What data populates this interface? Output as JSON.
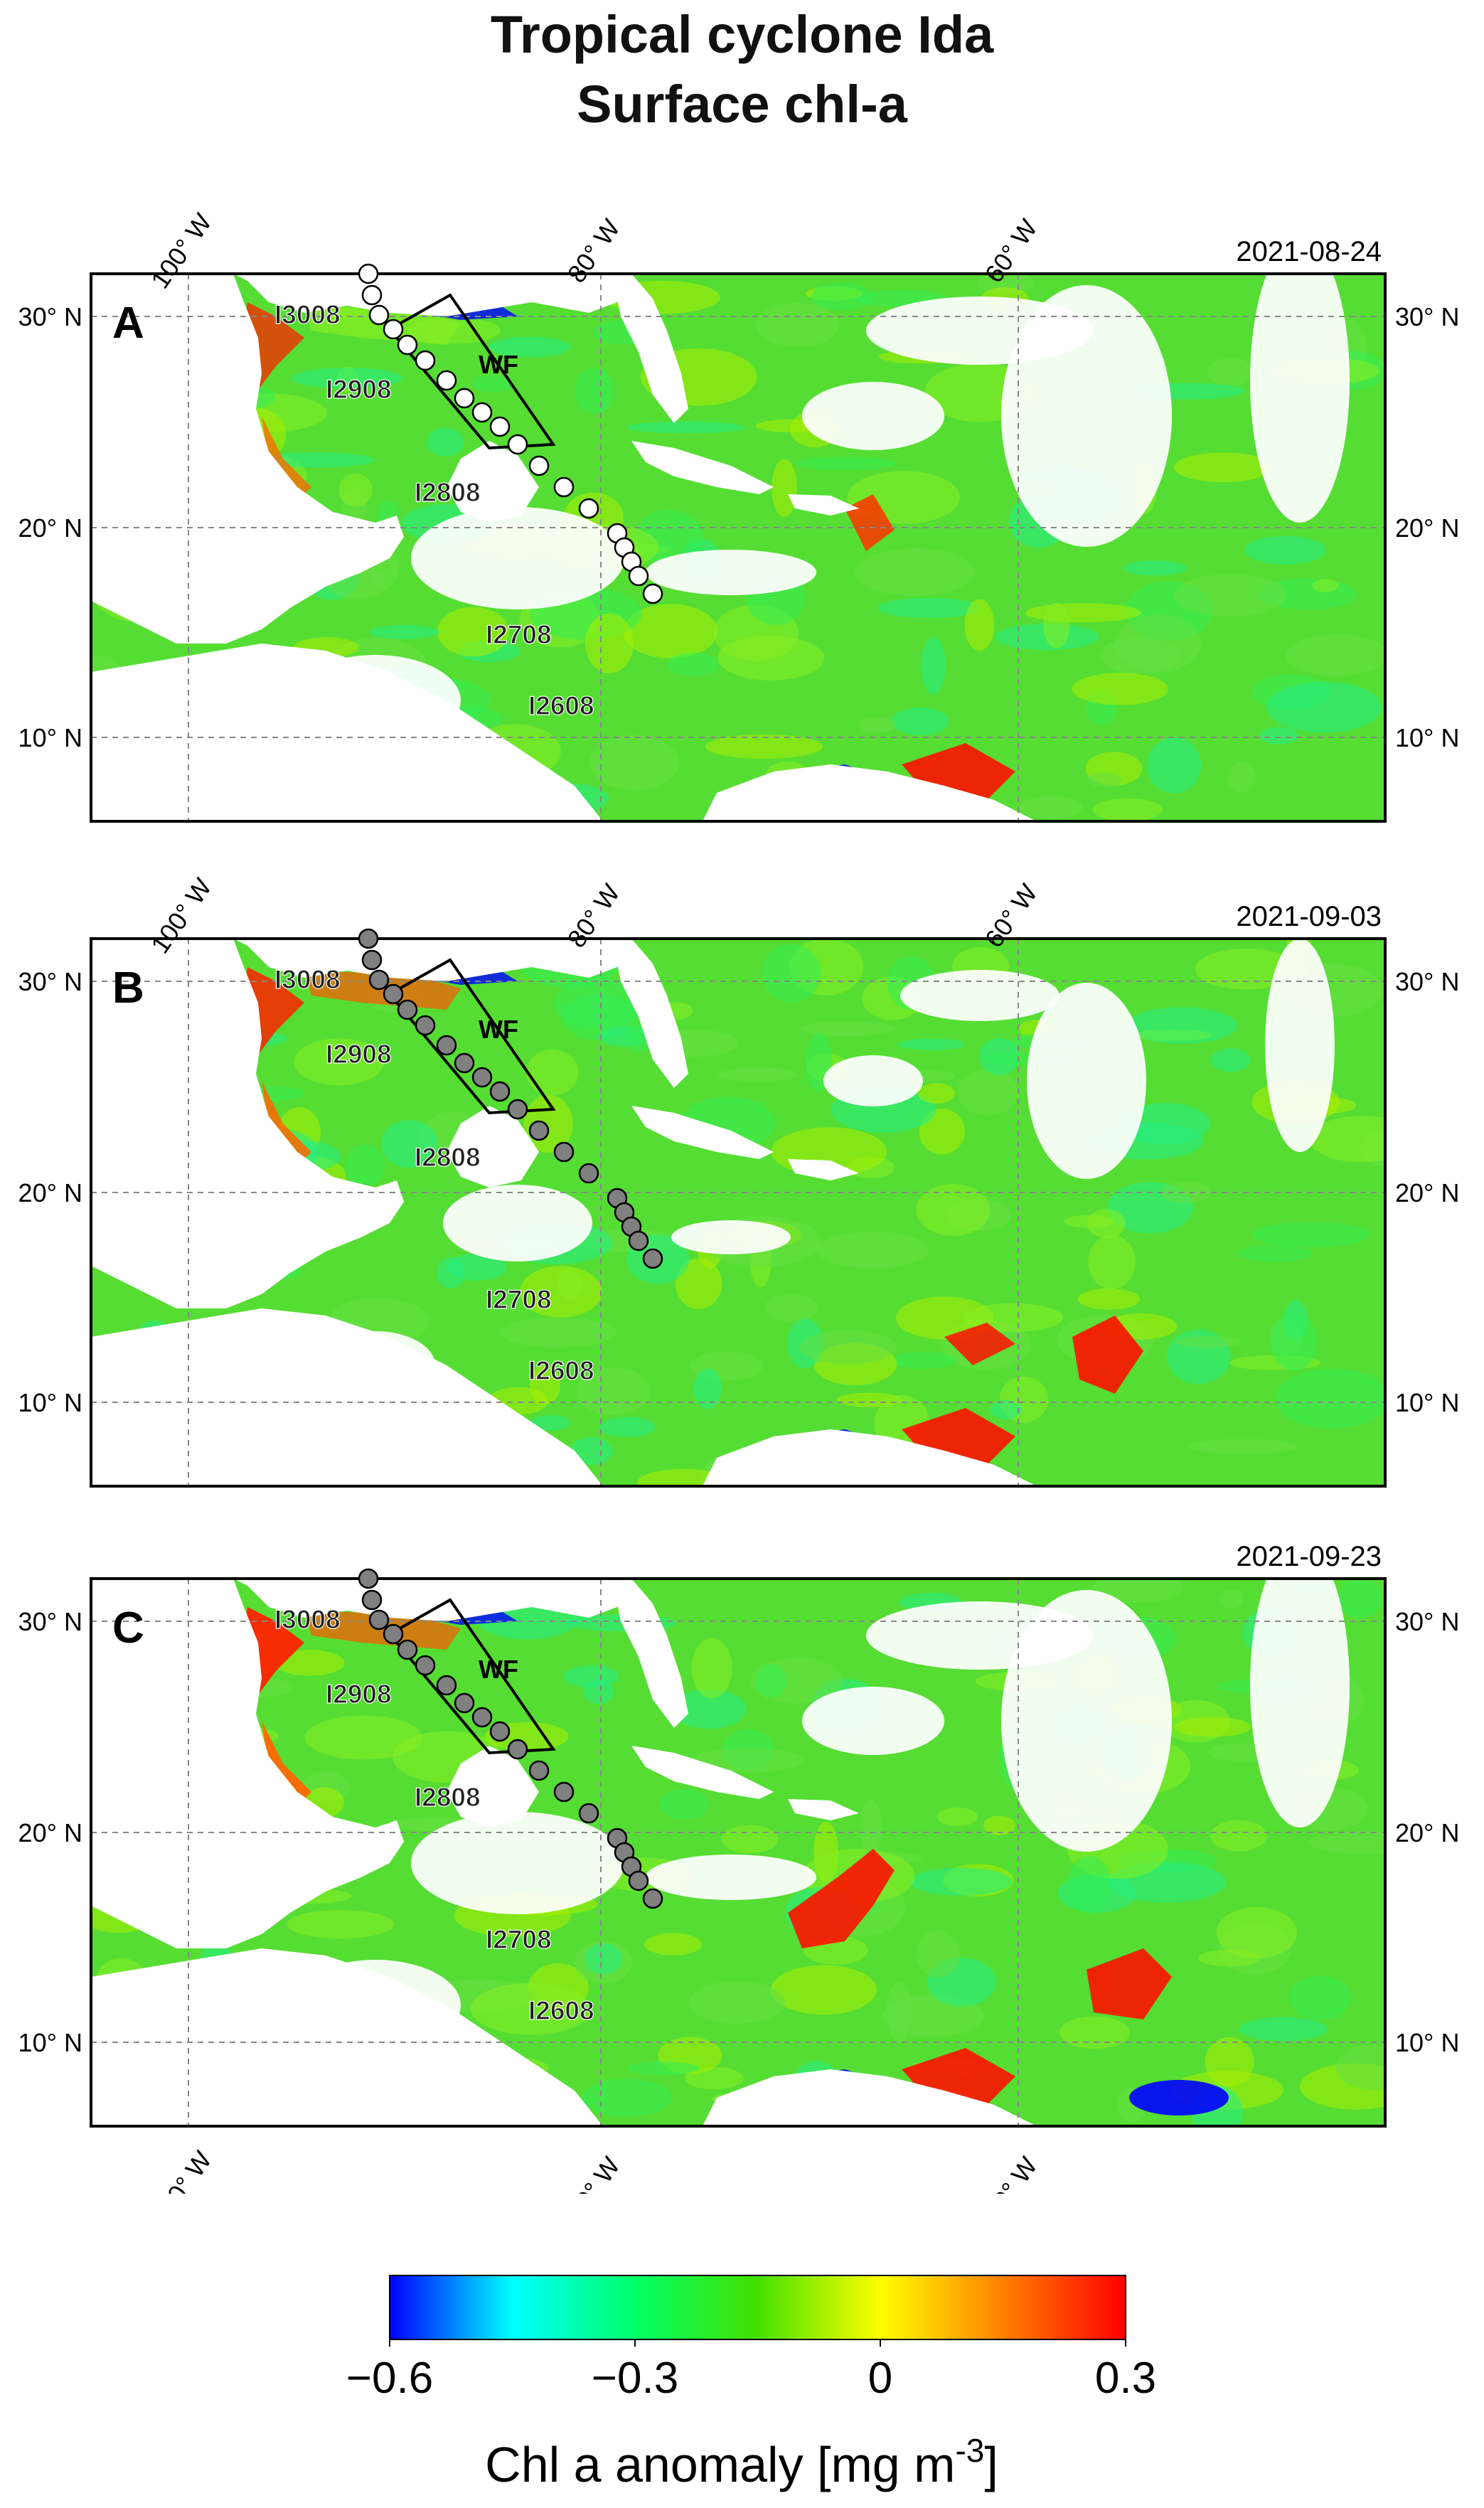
{
  "title_line1": "Tropical cyclone Ida",
  "title_line2": "Surface chl-a",
  "panels": [
    {
      "id": "A",
      "date": "2021-08-24",
      "marker": "open",
      "track_labels": [
        "I3008",
        "I2908",
        "I2808",
        "I2708",
        "I2608"
      ],
      "box_label": "WF"
    },
    {
      "id": "B",
      "date": "2021-09-03",
      "marker": "filled",
      "track_labels": [
        "I3008",
        "I2908",
        "I2808",
        "I2708",
        "I2608"
      ],
      "box_label": "WF"
    },
    {
      "id": "C",
      "date": "2021-09-23",
      "marker": "filled",
      "track_labels": [
        "I3008",
        "I2908",
        "I2808",
        "I2708",
        "I2608"
      ],
      "box_label": "WF"
    }
  ],
  "axes": {
    "lon_ticks": [
      "100° W",
      "80° W",
      "60° W"
    ],
    "lat_ticks": [
      "30° N",
      "20° N",
      "10° N"
    ]
  },
  "colorbar": {
    "ticks": [
      "−0.6",
      "−0.3",
      "0",
      "0.3"
    ],
    "label_main": "Chl a anomaly [mg m",
    "label_sup": "-3",
    "label_end": "]",
    "colors": [
      "#0000ff",
      "#00ffff",
      "#00ff66",
      "#44e000",
      "#ffff00",
      "#ff8000",
      "#ff0000"
    ]
  }
}
